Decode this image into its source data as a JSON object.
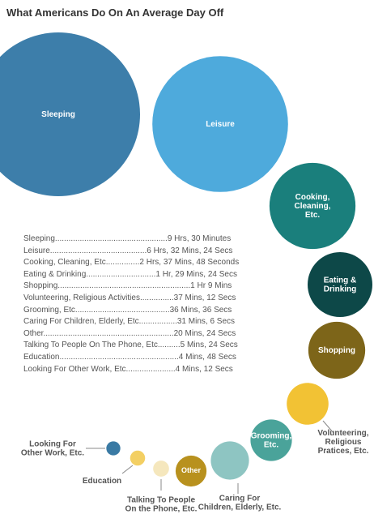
{
  "chart_data": {
    "type": "bubble",
    "title": "What Americans Do On An Average Day Off",
    "unit": "minutes",
    "series": [
      {
        "name": "Sleeping",
        "label_lines": [
          "Sleeping"
        ],
        "minutes": 570.0,
        "duration_text": "9 Hrs, 30 Minutes",
        "list_text": "Sleeping..................................................9 Hrs, 30 Minutes",
        "color": "#3d7eaa",
        "label_placement": "inside"
      },
      {
        "name": "Leisure",
        "label_lines": [
          "Leisure"
        ],
        "minutes": 392.4,
        "duration_text": "6 Hrs, 32 Mins, 24 Secs",
        "list_text": "Leisure...........................................6 Hrs, 32 Mins, 24 Secs",
        "color": "#4eaadc",
        "label_placement": "inside"
      },
      {
        "name": "Cooking, Cleaning, Etc.",
        "label_lines": [
          "Cooking,",
          "Cleaning,",
          "Etc."
        ],
        "minutes": 157.8,
        "duration_text": "2 Hrs, 37 Mins, 48 Seconds",
        "list_text": "Cooking, Cleaning, Etc...............2 Hrs, 37 Mins, 48 Seconds",
        "color": "#1a7f7c",
        "label_placement": "inside"
      },
      {
        "name": "Eating & Drinking",
        "label_lines": [
          "Eating &",
          "Drinking"
        ],
        "minutes": 89.4,
        "duration_text": "1 Hr, 29 Mins, 24 Secs",
        "list_text": "Eating & Drinking...............................1 Hr, 29 Mins, 24 Secs",
        "color": "#0d4848",
        "label_placement": "inside"
      },
      {
        "name": "Shopping",
        "label_lines": [
          "Shopping"
        ],
        "minutes": 69.0,
        "duration_text": "1 Hr 9 Mins",
        "list_text": "Shopping...........................................................1 Hr 9 Mins",
        "color": "#7d6519",
        "label_placement": "inside"
      },
      {
        "name": "Volunteering, Religious Activities",
        "label_lines": [
          "Volunteering,",
          "Religious",
          "Pratices, Etc."
        ],
        "minutes": 37.2,
        "duration_text": "37 Mins, 12 Secs",
        "list_text": "Volunteering, Religious Activities...............37 Mins, 12 Secs",
        "color": "#f2c234",
        "label_placement": "outside"
      },
      {
        "name": "Grooming, Etc.",
        "label_lines": [
          "Grooming,",
          "Etc."
        ],
        "minutes": 36.6,
        "duration_text": "36 Mins, 36 Secs",
        "list_text": "Grooming, Etc..........................................36 Mins, 36 Secs",
        "color": "#4aa39a",
        "label_placement": "inside"
      },
      {
        "name": "Caring For Children, Elderly, Etc.",
        "label_lines": [
          "Caring For",
          "Children, Elderly, Etc."
        ],
        "minutes": 31.1,
        "duration_text": "31 Mins, 6 Secs",
        "list_text": "Caring For Children, Elderly, Etc.................31 Mins, 6 Secs",
        "color": "#8ec5c2",
        "label_placement": "outside"
      },
      {
        "name": "Other",
        "label_lines": [
          "Other"
        ],
        "minutes": 20.4,
        "duration_text": "20 Mins, 24 Secs",
        "list_text": "Other..........................................................20 Mins, 24 Secs",
        "color": "#b8911e",
        "label_placement": "inside"
      },
      {
        "name": "Talking To People On The Phone, Etc.",
        "label_lines": [
          "Talking To People",
          "On the Phone, Etc."
        ],
        "minutes": 5.4,
        "duration_text": "5 Mins, 24 Secs",
        "list_text": "Talking To People On The Phone, Etc..........5 Mins, 24 Secs",
        "color": "#f5e7bd",
        "label_placement": "outside"
      },
      {
        "name": "Education",
        "label_lines": [
          "Education"
        ],
        "minutes": 4.8,
        "duration_text": "4 Mins, 48 Secs",
        "list_text": "Education.....................................................4 Mins, 48 Secs",
        "color": "#f3cf63",
        "label_placement": "outside"
      },
      {
        "name": "Looking For Other Work, Etc.",
        "label_lines": [
          "Looking For",
          "Other Work, Etc."
        ],
        "minutes": 4.2,
        "duration_text": "4 Mins, 12 Secs",
        "list_text": "Looking For Other Work, Etc......................4 Mins, 12 Secs",
        "color": "#3a7aa4",
        "label_placement": "outside"
      }
    ]
  }
}
